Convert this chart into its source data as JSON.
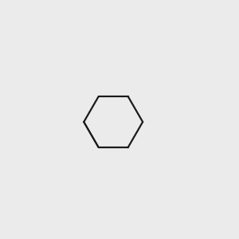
{
  "background_color": "#ebebeb",
  "bond_color": "#1a1a1a",
  "oxygen_color": "#cc0000",
  "nitrogen_color": "#1a1acc",
  "hydrogen_color": "#4a8080",
  "figsize": [
    3.0,
    3.0
  ],
  "dpi": 100
}
